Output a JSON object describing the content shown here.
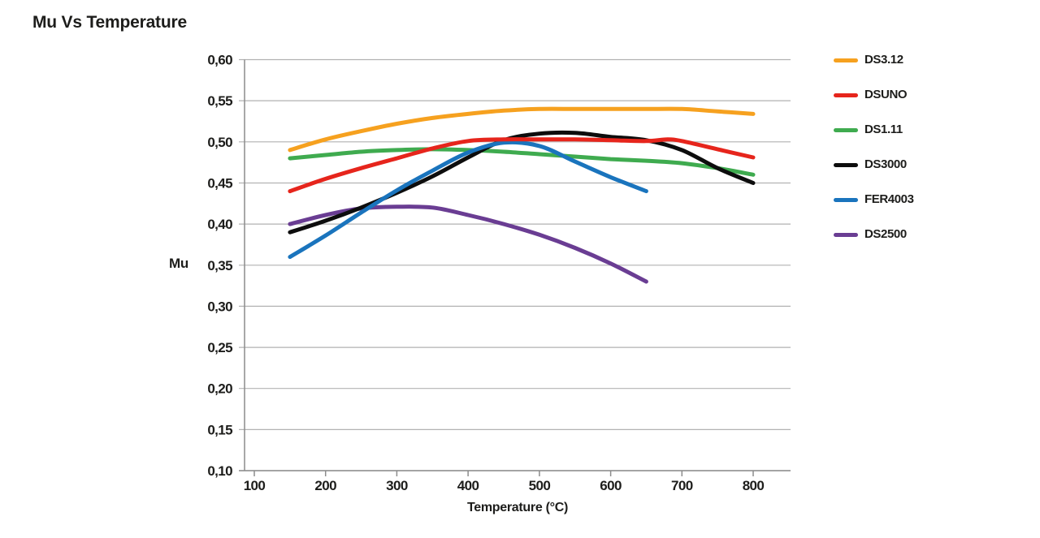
{
  "chart_data": {
    "type": "line",
    "title": "Mu Vs Temperature",
    "xlabel": "Temperature (°C)",
    "ylabel": "Mu",
    "xlim": [
      85,
      855
    ],
    "ylim": [
      0.1,
      0.6
    ],
    "x_ticks": [
      100,
      200,
      300,
      400,
      500,
      600,
      700,
      800
    ],
    "x_tick_labels": [
      "100",
      "200",
      "300",
      "400",
      "500",
      "600",
      "700",
      "800"
    ],
    "y_ticks": [
      0.6,
      0.55,
      0.5,
      0.45,
      0.4,
      0.35,
      0.3,
      0.25,
      0.2,
      0.15,
      0.1
    ],
    "y_tick_labels": [
      "0,60",
      "0,55",
      "0,50",
      "0,45",
      "0,40",
      "0,35",
      "0,30",
      "0,25",
      "0,20",
      "0,15",
      "0,10"
    ],
    "grid": "horizontal",
    "legend_position": "right-top",
    "grid_color": "#b2b2b2",
    "axis_color": "#8c8c8c",
    "text_color": "#1d1d1b",
    "series": [
      {
        "name": "DS3.12",
        "color": "#F6A11F",
        "points": [
          [
            150,
            0.49
          ],
          [
            200,
            0.503
          ],
          [
            250,
            0.513
          ],
          [
            300,
            0.522
          ],
          [
            350,
            0.529
          ],
          [
            400,
            0.534
          ],
          [
            450,
            0.538
          ],
          [
            500,
            0.54
          ],
          [
            550,
            0.54
          ],
          [
            600,
            0.54
          ],
          [
            650,
            0.54
          ],
          [
            700,
            0.54
          ],
          [
            750,
            0.537
          ],
          [
            800,
            0.534
          ]
        ]
      },
      {
        "name": "DSUNO",
        "color": "#E6251C",
        "points": [
          [
            150,
            0.44
          ],
          [
            200,
            0.455
          ],
          [
            250,
            0.468
          ],
          [
            300,
            0.48
          ],
          [
            350,
            0.492
          ],
          [
            400,
            0.501
          ],
          [
            450,
            0.503
          ],
          [
            500,
            0.503
          ],
          [
            550,
            0.503
          ],
          [
            600,
            0.502
          ],
          [
            650,
            0.501
          ],
          [
            680,
            0.503
          ],
          [
            700,
            0.501
          ],
          [
            750,
            0.491
          ],
          [
            800,
            0.481
          ]
        ]
      },
      {
        "name": "DS1.11",
        "color": "#3FAB4F",
        "points": [
          [
            150,
            0.48
          ],
          [
            200,
            0.484
          ],
          [
            250,
            0.488
          ],
          [
            300,
            0.49
          ],
          [
            350,
            0.491
          ],
          [
            400,
            0.49
          ],
          [
            450,
            0.488
          ],
          [
            500,
            0.485
          ],
          [
            550,
            0.482
          ],
          [
            600,
            0.479
          ],
          [
            650,
            0.477
          ],
          [
            700,
            0.474
          ],
          [
            750,
            0.468
          ],
          [
            800,
            0.46
          ]
        ]
      },
      {
        "name": "DS3000",
        "color": "#0d0d0d",
        "points": [
          [
            150,
            0.39
          ],
          [
            200,
            0.404
          ],
          [
            250,
            0.42
          ],
          [
            300,
            0.438
          ],
          [
            350,
            0.458
          ],
          [
            400,
            0.481
          ],
          [
            450,
            0.502
          ],
          [
            500,
            0.51
          ],
          [
            550,
            0.511
          ],
          [
            600,
            0.506
          ],
          [
            650,
            0.502
          ],
          [
            700,
            0.49
          ],
          [
            750,
            0.468
          ],
          [
            800,
            0.45
          ]
        ]
      },
      {
        "name": "FER4003",
        "color": "#1A74BD",
        "points": [
          [
            150,
            0.36
          ],
          [
            200,
            0.386
          ],
          [
            250,
            0.414
          ],
          [
            300,
            0.441
          ],
          [
            350,
            0.465
          ],
          [
            400,
            0.487
          ],
          [
            450,
            0.499
          ],
          [
            500,
            0.495
          ],
          [
            550,
            0.476
          ],
          [
            600,
            0.457
          ],
          [
            650,
            0.44
          ]
        ]
      },
      {
        "name": "DS2500",
        "color": "#6A3D93",
        "points": [
          [
            150,
            0.4
          ],
          [
            200,
            0.411
          ],
          [
            250,
            0.419
          ],
          [
            300,
            0.421
          ],
          [
            350,
            0.42
          ],
          [
            400,
            0.411
          ],
          [
            450,
            0.4
          ],
          [
            500,
            0.387
          ],
          [
            550,
            0.371
          ],
          [
            600,
            0.352
          ],
          [
            650,
            0.33
          ]
        ]
      }
    ]
  }
}
